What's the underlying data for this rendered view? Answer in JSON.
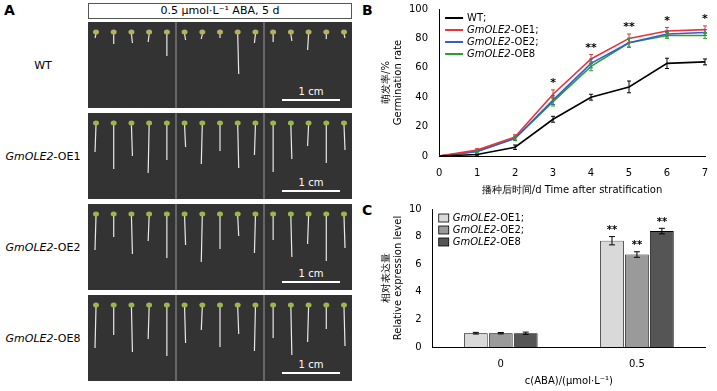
{
  "image_panel": {
    "panel": "A",
    "title": "0.5 μmol·L⁻¹ ABA, 5 d",
    "rows": [
      {
        "label": "WT",
        "scale_bar": "1 cm"
      },
      {
        "label": "GmOLE2-OE1",
        "scale_bar": "1 cm"
      },
      {
        "label": "GmOLE2-OE2",
        "scale_bar": "1 cm"
      },
      {
        "label": "GmOLE2-OE8",
        "scale_bar": "1 cm"
      }
    ]
  },
  "chart_data": [
    {
      "panel": "B",
      "type": "line",
      "x_label": "播种后时间/d Time after stratification",
      "y_label": [
        "萌发率/%",
        "Germination rate"
      ],
      "x": [
        0,
        1,
        2,
        3,
        4,
        5,
        6,
        7
      ],
      "xlim": [
        0,
        7
      ],
      "xticks": [
        0,
        1,
        2,
        3,
        4,
        5,
        6,
        7
      ],
      "ylim": [
        0,
        100
      ],
      "yticks": [
        0,
        20,
        40,
        60,
        80,
        100
      ],
      "grid": false,
      "legend": "top-left",
      "marker": "none",
      "series": [
        {
          "name": "WT;",
          "color": "#000000",
          "values": [
            0,
            1,
            6,
            25,
            40,
            47,
            63,
            64
          ],
          "errors": [
            0,
            0.5,
            1.5,
            2,
            2,
            4,
            3.5,
            2
          ]
        },
        {
          "name": "GmOLE2-OE1;",
          "color": "#e8333a",
          "values": [
            0,
            4,
            13,
            42,
            66,
            80,
            85,
            86
          ],
          "errors": [
            0,
            1,
            1.5,
            3,
            3,
            3,
            2.5,
            2.5
          ]
        },
        {
          "name": "GmOLE2-OE2;",
          "color": "#2f5fd0",
          "values": [
            0,
            3,
            12,
            38,
            63,
            77,
            83,
            84
          ],
          "errors": [
            0,
            1,
            1.5,
            3,
            3,
            3,
            2,
            2
          ]
        },
        {
          "name": "GmOLE2-OE8",
          "color": "#2ca02c",
          "values": [
            0,
            3,
            12,
            37,
            61,
            77,
            82,
            82
          ],
          "errors": [
            0,
            1,
            1.5,
            3,
            3,
            3,
            2,
            2
          ]
        }
      ],
      "annotations": [
        {
          "x": 3,
          "text": "*"
        },
        {
          "x": 4,
          "text": "**"
        },
        {
          "x": 5,
          "text": "**"
        },
        {
          "x": 6,
          "text": "*"
        },
        {
          "x": 7,
          "text": "*"
        }
      ]
    },
    {
      "panel": "C",
      "type": "bar",
      "x_label": "c(ABA)/(μmol·L⁻¹)",
      "y_label": [
        "相对表达量",
        "Relative expression level"
      ],
      "categories": [
        "0",
        "0.5"
      ],
      "ylim": [
        0,
        10
      ],
      "yticks": [
        0,
        2,
        4,
        6,
        8,
        10
      ],
      "grid": false,
      "legend": "top-left",
      "series": [
        {
          "name": "GmOLE2-OE1;",
          "color": "#d9d9d9",
          "values": [
            1,
            7.7
          ],
          "errors": [
            0.06,
            0.3
          ]
        },
        {
          "name": "GmOLE2-OE2;",
          "color": "#9a9a9a",
          "values": [
            1,
            6.7
          ],
          "errors": [
            0.05,
            0.2
          ]
        },
        {
          "name": "GmOLE2-OE8",
          "color": "#555555",
          "values": [
            1,
            8.4
          ],
          "errors": [
            0.08,
            0.2
          ]
        }
      ],
      "annotations": [
        {
          "category": "0.5",
          "series": "GmOLE2-OE1;",
          "text": "**"
        },
        {
          "category": "0.5",
          "series": "GmOLE2-OE2;",
          "text": "**"
        },
        {
          "category": "0.5",
          "series": "GmOLE2-OE8",
          "text": "**"
        }
      ]
    }
  ]
}
